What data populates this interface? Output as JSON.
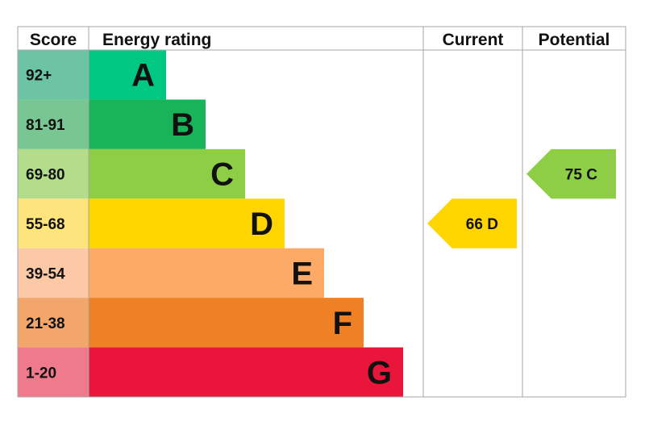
{
  "chart_data": {
    "type": "bar",
    "headers": {
      "score": "Score",
      "rating": "Energy rating",
      "current": "Current",
      "potential": "Potential"
    },
    "bands": [
      {
        "letter": "A",
        "range": "92+",
        "color": "#00c781",
        "score_color": "#6cc4a4"
      },
      {
        "letter": "B",
        "range": "81-91",
        "color": "#19b459",
        "score_color": "#78c793"
      },
      {
        "letter": "C",
        "range": "69-80",
        "color": "#8dce46",
        "score_color": "#b3dd8a"
      },
      {
        "letter": "D",
        "range": "55-68",
        "color": "#ffd500",
        "score_color": "#fde47c"
      },
      {
        "letter": "E",
        "range": "39-54",
        "color": "#fcaa65",
        "score_color": "#fbc9a6"
      },
      {
        "letter": "F",
        "range": "21-38",
        "color": "#ef8023",
        "score_color": "#f2a66c"
      },
      {
        "letter": "G",
        "range": "1-20",
        "color": "#e9153b",
        "score_color": "#ee7a8c"
      }
    ],
    "current": {
      "value": 66,
      "band": "D",
      "label": "66  D"
    },
    "potential": {
      "value": 75,
      "band": "C",
      "label": "75  C"
    }
  }
}
